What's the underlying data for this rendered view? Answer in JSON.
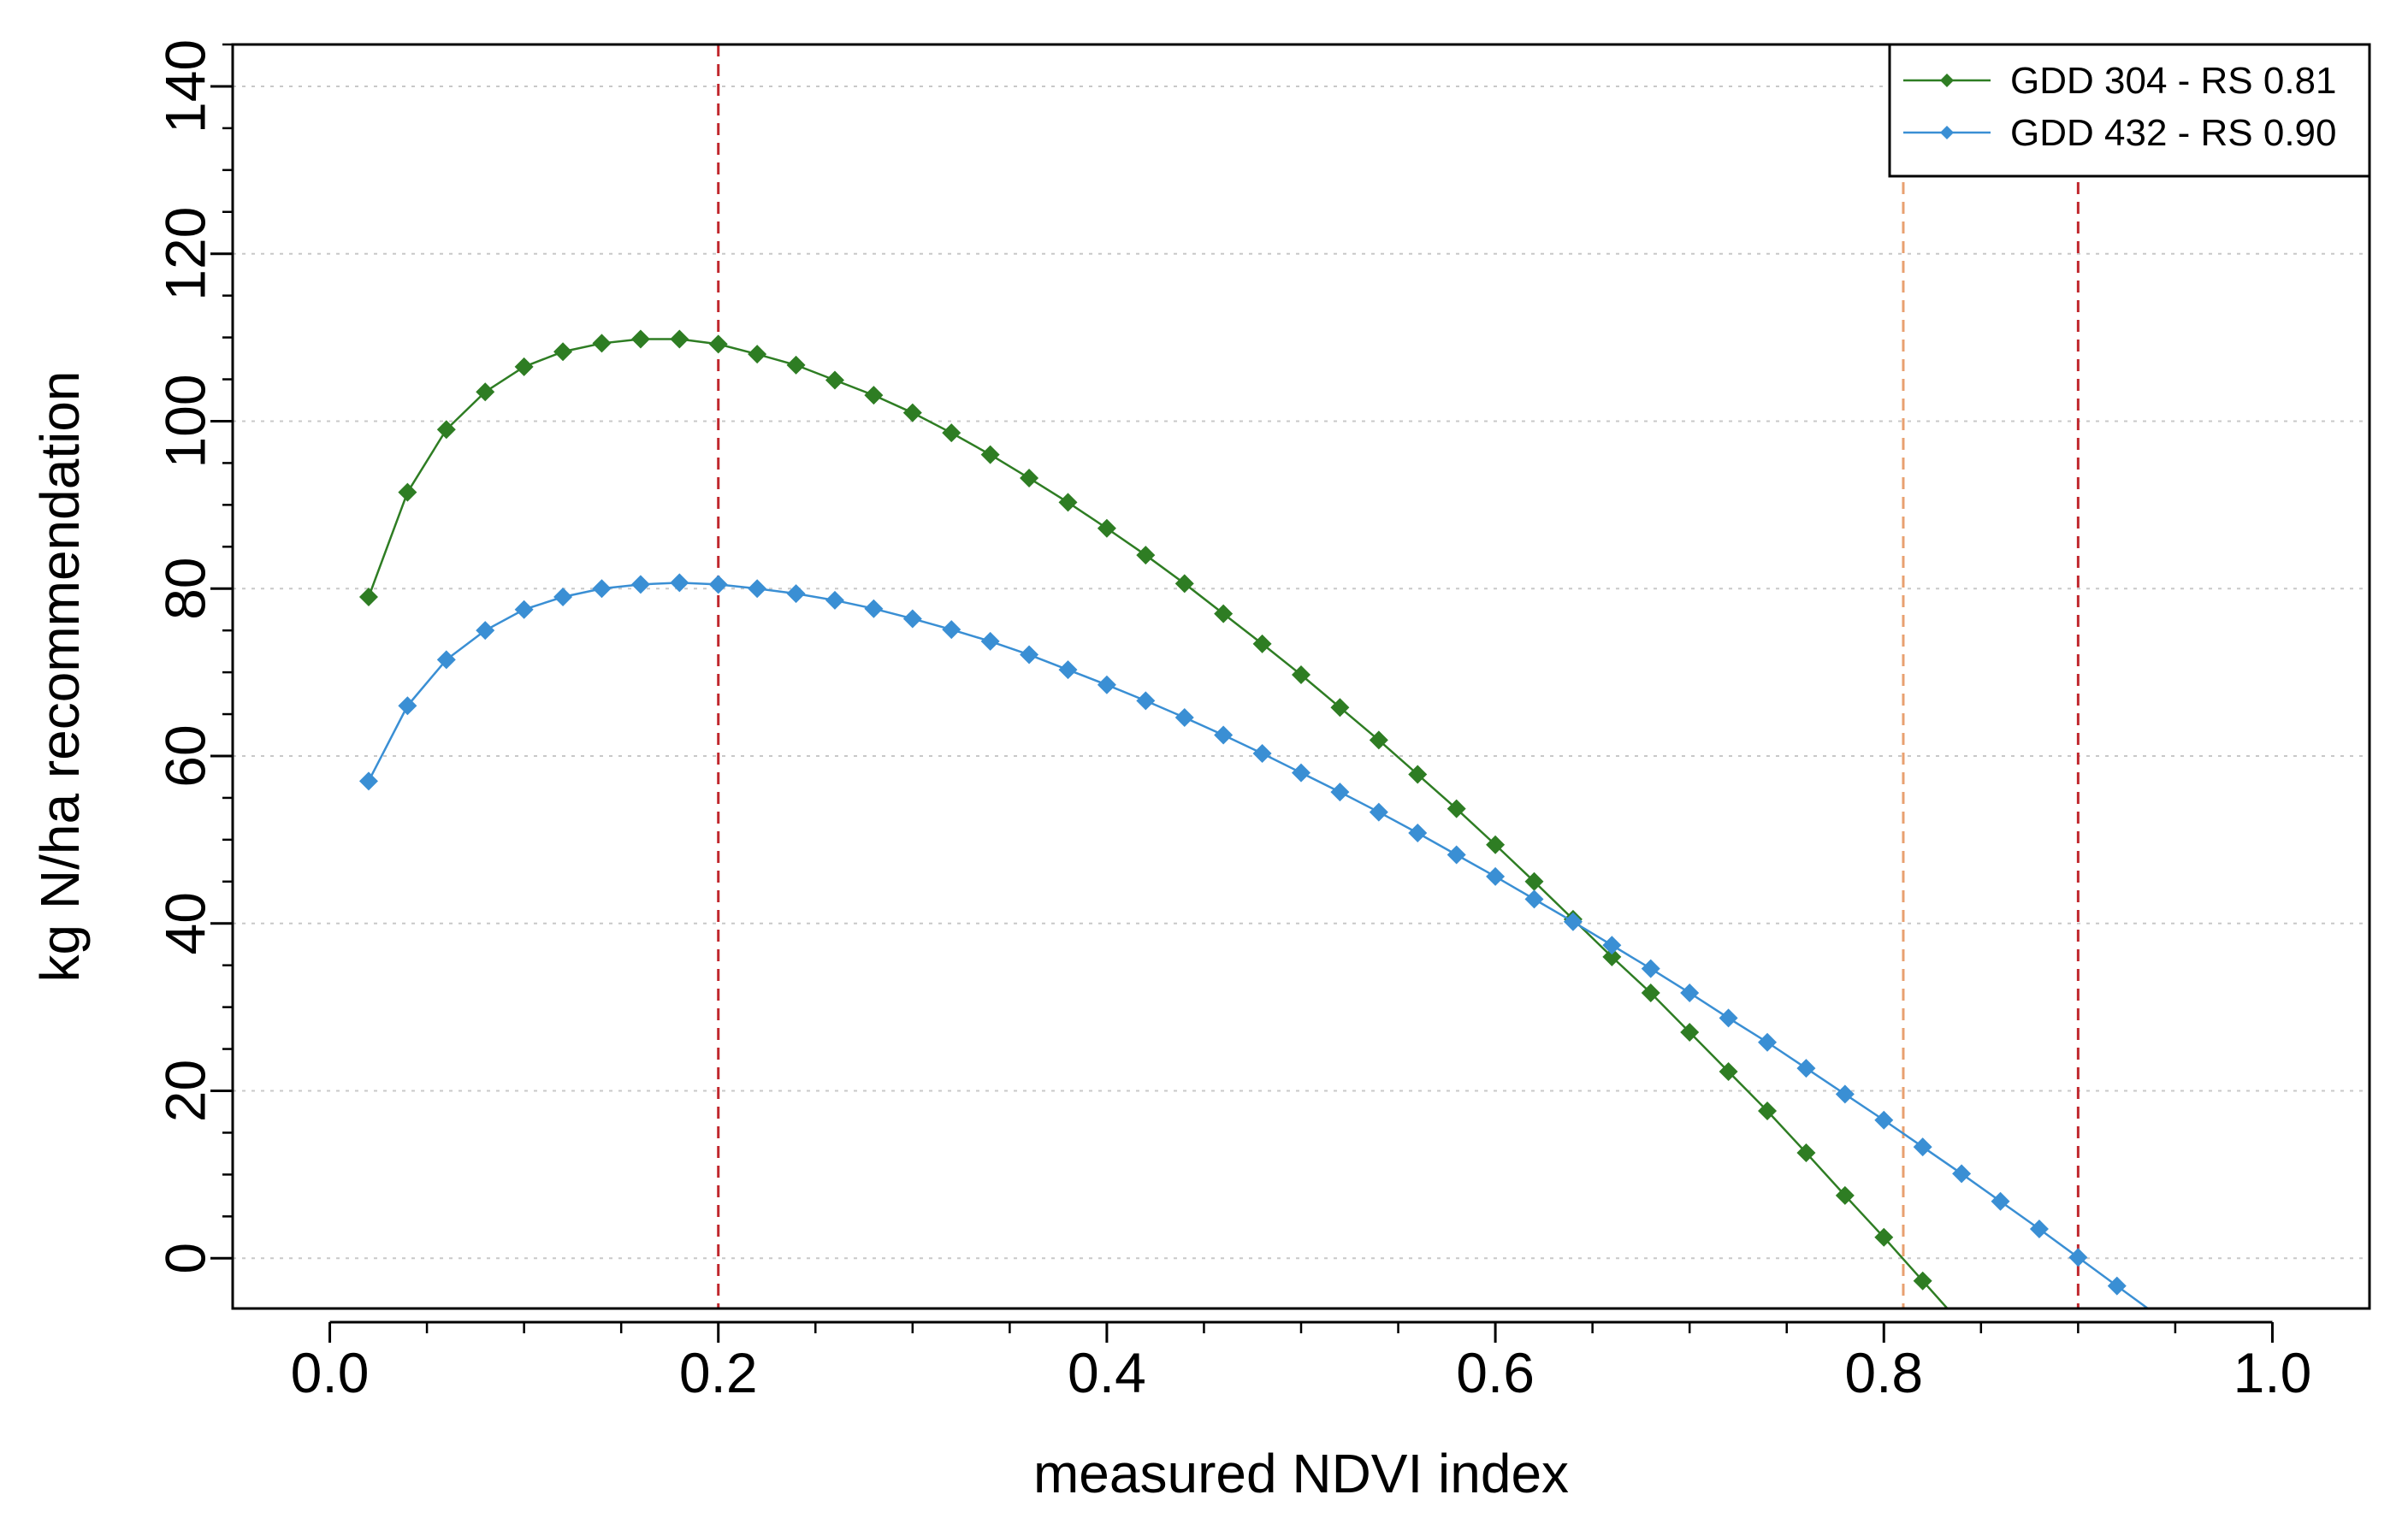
{
  "chart_data": {
    "type": "line",
    "title": "",
    "xlabel": "measured NDVI index",
    "ylabel": "kg N/ha recommendation",
    "xlim": [
      -0.05,
      1.05
    ],
    "ylim": [
      -6,
      145
    ],
    "x_ticks": [
      0.0,
      0.2,
      0.4,
      0.6,
      0.8,
      1.0
    ],
    "x_tick_labels": [
      "0.0",
      "0.2",
      "0.4",
      "0.6",
      "0.8",
      "1.0"
    ],
    "y_ticks": [
      0,
      20,
      40,
      60,
      80,
      100,
      120,
      140
    ],
    "y_tick_labels": [
      "0",
      "20",
      "40",
      "60",
      "80",
      "100",
      "120",
      "140"
    ],
    "y_minor_step": 5,
    "x_minor_step": 0.05,
    "grid": "horizontal dotted",
    "legend_position": "top-right",
    "series": [
      {
        "name": "GDD 304 - RS 0.81",
        "color": "#2e7d23",
        "x": [
          0.02,
          0.04,
          0.06,
          0.08,
          0.1,
          0.12,
          0.14,
          0.16,
          0.18,
          0.2,
          0.22,
          0.24,
          0.26,
          0.28,
          0.3,
          0.32,
          0.34,
          0.36,
          0.38,
          0.4,
          0.42,
          0.44,
          0.46,
          0.48,
          0.5,
          0.52,
          0.54,
          0.56,
          0.58,
          0.6,
          0.62,
          0.64,
          0.66,
          0.68,
          0.7,
          0.72,
          0.74,
          0.76,
          0.78,
          0.8,
          0.82
        ],
        "y": [
          79,
          91.5,
          99,
          103.5,
          106.5,
          108.3,
          109.3,
          109.8,
          109.8,
          109.2,
          108,
          106.7,
          104.9,
          103.1,
          101,
          98.6,
          96,
          93.2,
          90.3,
          87.2,
          84,
          80.6,
          77,
          73.4,
          69.7,
          65.8,
          61.9,
          57.8,
          53.7,
          49.4,
          45,
          40.5,
          36,
          31.7,
          27,
          22.3,
          17.6,
          12.6,
          7.5,
          2.5,
          -2.7
        ]
      },
      {
        "name": "GDD 432 - RS 0.90",
        "color": "#3a8fd4",
        "x": [
          0.02,
          0.04,
          0.06,
          0.08,
          0.1,
          0.12,
          0.14,
          0.16,
          0.18,
          0.2,
          0.22,
          0.24,
          0.26,
          0.28,
          0.3,
          0.32,
          0.34,
          0.36,
          0.38,
          0.4,
          0.42,
          0.44,
          0.46,
          0.48,
          0.5,
          0.52,
          0.54,
          0.56,
          0.58,
          0.6,
          0.62,
          0.64,
          0.66,
          0.68,
          0.7,
          0.72,
          0.74,
          0.76,
          0.78,
          0.8,
          0.82,
          0.84,
          0.86,
          0.88,
          0.9,
          0.92
        ],
        "y": [
          57,
          66,
          71.5,
          75,
          77.5,
          79,
          80,
          80.5,
          80.7,
          80.5,
          80,
          79.4,
          78.6,
          77.6,
          76.4,
          75.1,
          73.7,
          72.1,
          70.3,
          68.5,
          66.6,
          64.6,
          62.5,
          60.3,
          58,
          55.7,
          53.3,
          50.8,
          48.2,
          45.6,
          42.9,
          40.2,
          37.4,
          34.6,
          31.7,
          28.7,
          25.8,
          22.7,
          19.6,
          16.5,
          13.3,
          10.1,
          6.8,
          3.5,
          0.1,
          -3.3
        ]
      }
    ],
    "reference_lines": [
      {
        "x": 0.2,
        "color": "#c0272d"
      },
      {
        "x": 0.81,
        "color": "#e8a070"
      },
      {
        "x": 0.9,
        "color": "#c0272d"
      }
    ]
  }
}
